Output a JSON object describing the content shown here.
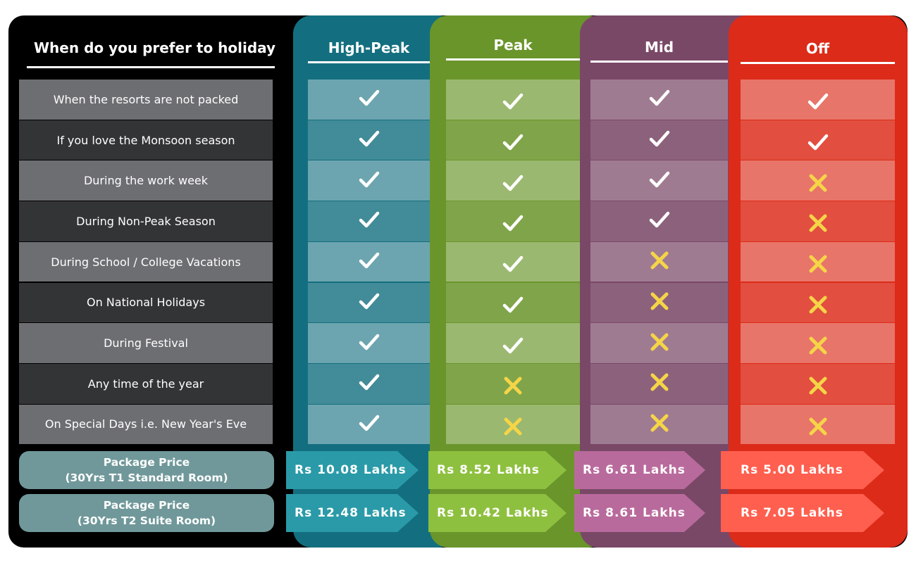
{
  "header": "When do you prefer to holiday",
  "columns": [
    {
      "label": "High-Peak",
      "color": "#136f7f"
    },
    {
      "label": "Peak",
      "color": "#6a952b"
    },
    {
      "label": "Mid",
      "color": "#7a4867"
    },
    {
      "label": "Off",
      "color": "#dc2b19"
    }
  ],
  "rows": [
    {
      "label": "When the resorts are not packed",
      "marks": [
        "check",
        "check",
        "check",
        "check"
      ]
    },
    {
      "label": "If you love the Monsoon season",
      "marks": [
        "check",
        "check",
        "check",
        "check"
      ]
    },
    {
      "label": "During the work week",
      "marks": [
        "check",
        "check",
        "check",
        "cross"
      ]
    },
    {
      "label": "During Non-Peak Season",
      "marks": [
        "check",
        "check",
        "check",
        "cross"
      ]
    },
    {
      "label": "During School / College Vacations",
      "marks": [
        "check",
        "check",
        "cross",
        "cross"
      ]
    },
    {
      "label": "On National Holidays",
      "marks": [
        "check",
        "check",
        "cross",
        "cross"
      ]
    },
    {
      "label": "During Festival",
      "marks": [
        "check",
        "check",
        "cross",
        "cross"
      ]
    },
    {
      "label": "Any time of the year",
      "marks": [
        "check",
        "cross",
        "cross",
        "cross"
      ]
    },
    {
      "label": "On Special Days i.e. New Year's Eve",
      "marks": [
        "check",
        "cross",
        "cross",
        "cross"
      ]
    }
  ],
  "packages": [
    {
      "line1": "Package Price",
      "line2": "(30Yrs T1 Standard Room)",
      "prices": [
        "Rs 10.08 Lakhs",
        "Rs 8.52 Lakhs",
        "Rs 6.61 Lakhs",
        "Rs 5.00 Lakhs"
      ]
    },
    {
      "line1": "Package Price",
      "line2": "(30Yrs T2 Suite Room)",
      "prices": [
        "Rs 12.48 Lakhs",
        "Rs 10.42 Lakhs",
        "Rs 8.61 Lakhs",
        "Rs 7.05 Lakhs"
      ]
    }
  ],
  "colors": {
    "check": "#ffffff",
    "cross": "#f5d547"
  }
}
